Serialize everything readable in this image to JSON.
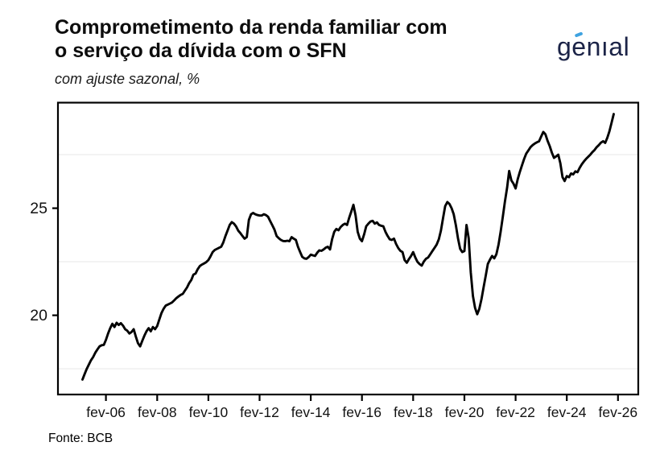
{
  "header": {
    "title_line1": "Comprometimento da renda familiar com",
    "title_line2": "o serviço da dívida com o SFN",
    "subtitle": "com ajuste sazonal, %"
  },
  "logo": {
    "brand": "genial",
    "pre": "g",
    "accented_letter": "e",
    "post": "nıal",
    "text_color": "#1b2347",
    "accent_color": "#3fa3e0"
  },
  "footer": {
    "source": "Fonte: BCB"
  },
  "chart_data": {
    "type": "line",
    "title": "Comprometimento da renda familiar com o serviço da dívida com o SFN",
    "subtitle": "com ajuste sazonal, %",
    "source": "Fonte: BCB",
    "series_name": "Comprometimento da renda familiar com o serviço da dívida (%)",
    "frequency": "monthly",
    "start": "2005-03",
    "end": "2025-12",
    "values": [
      17.0,
      17.25,
      17.5,
      17.7,
      17.9,
      18.05,
      18.25,
      18.4,
      18.55,
      18.6,
      18.62,
      18.85,
      19.15,
      19.4,
      19.6,
      19.45,
      19.65,
      19.55,
      19.63,
      19.52,
      19.35,
      19.28,
      19.15,
      19.22,
      19.35,
      19.0,
      18.7,
      18.55,
      18.8,
      19.05,
      19.25,
      19.4,
      19.25,
      19.45,
      19.35,
      19.5,
      19.8,
      20.1,
      20.3,
      20.45,
      20.5,
      20.55,
      20.6,
      20.7,
      20.8,
      20.88,
      20.95,
      21.0,
      21.15,
      21.3,
      21.5,
      21.65,
      21.9,
      21.95,
      22.15,
      22.3,
      22.37,
      22.42,
      22.48,
      22.58,
      22.75,
      22.95,
      23.05,
      23.1,
      23.15,
      23.2,
      23.4,
      23.7,
      23.95,
      24.22,
      24.35,
      24.28,
      24.15,
      23.95,
      23.84,
      23.7,
      23.58,
      23.65,
      24.45,
      24.72,
      24.78,
      24.72,
      24.68,
      24.66,
      24.66,
      24.72,
      24.68,
      24.6,
      24.4,
      24.2,
      24.0,
      23.7,
      23.6,
      23.52,
      23.47,
      23.46,
      23.48,
      23.46,
      23.65,
      23.58,
      23.52,
      23.2,
      22.95,
      22.73,
      22.66,
      22.64,
      22.72,
      22.83,
      22.8,
      22.77,
      22.92,
      23.03,
      23.01,
      23.07,
      23.16,
      23.2,
      23.07,
      23.55,
      23.9,
      24.03,
      23.97,
      24.12,
      24.22,
      24.28,
      24.22,
      24.55,
      24.85,
      25.16,
      24.66,
      23.9,
      23.58,
      23.46,
      23.78,
      24.16,
      24.28,
      24.38,
      24.41,
      24.28,
      24.34,
      24.22,
      24.18,
      24.16,
      23.9,
      23.71,
      23.55,
      23.52,
      23.58,
      23.33,
      23.14,
      23.01,
      22.95,
      22.58,
      22.45,
      22.62,
      22.77,
      22.95,
      22.7,
      22.5,
      22.39,
      22.32,
      22.51,
      22.64,
      22.7,
      22.85,
      23.0,
      23.15,
      23.3,
      23.55,
      23.95,
      24.55,
      25.1,
      25.29,
      25.2,
      25.0,
      24.72,
      24.2,
      23.6,
      23.1,
      22.95,
      23.0,
      24.22,
      23.6,
      22.0,
      20.9,
      20.35,
      20.05,
      20.3,
      20.75,
      21.3,
      21.85,
      22.4,
      22.6,
      22.77,
      22.66,
      22.85,
      23.3,
      23.9,
      24.6,
      25.3,
      25.95,
      26.74,
      26.3,
      26.15,
      25.92,
      26.35,
      26.7,
      27.0,
      27.3,
      27.55,
      27.7,
      27.85,
      27.95,
      28.02,
      28.08,
      28.12,
      28.35,
      28.56,
      28.45,
      28.15,
      27.9,
      27.6,
      27.35,
      27.42,
      27.5,
      27.1,
      26.45,
      26.27,
      26.5,
      26.45,
      26.62,
      26.58,
      26.72,
      26.68,
      26.88,
      27.05,
      27.18,
      27.3,
      27.4,
      27.5,
      27.62,
      27.72,
      27.85,
      27.95,
      28.06,
      28.13,
      28.05,
      28.3,
      28.6,
      29.0,
      29.4
    ],
    "x_ticks": [
      {
        "label": "fev-06",
        "i": 11
      },
      {
        "label": "fev-08",
        "i": 35
      },
      {
        "label": "fev-10",
        "i": 59
      },
      {
        "label": "fev-12",
        "i": 83
      },
      {
        "label": "fev-14",
        "i": 107
      },
      {
        "label": "fev-16",
        "i": 131
      },
      {
        "label": "fev-18",
        "i": 155
      },
      {
        "label": "fev-20",
        "i": 179
      },
      {
        "label": "fev-22",
        "i": 203
      },
      {
        "label": "fev-24",
        "i": 227
      },
      {
        "label": "fev-26",
        "i": 251
      }
    ],
    "y_ticks": [
      {
        "label": "20",
        "value": 20
      },
      {
        "label": "25",
        "value": 25
      }
    ],
    "minor_gridlines": [
      17.5,
      22.5,
      27.5
    ],
    "xlim_month_index": [
      -11.5,
      260.5
    ],
    "ylim": [
      16.3,
      29.93
    ],
    "line_color": "#000000",
    "gridline_color": "#ededed",
    "grid": "minor-only",
    "legend": "none"
  }
}
